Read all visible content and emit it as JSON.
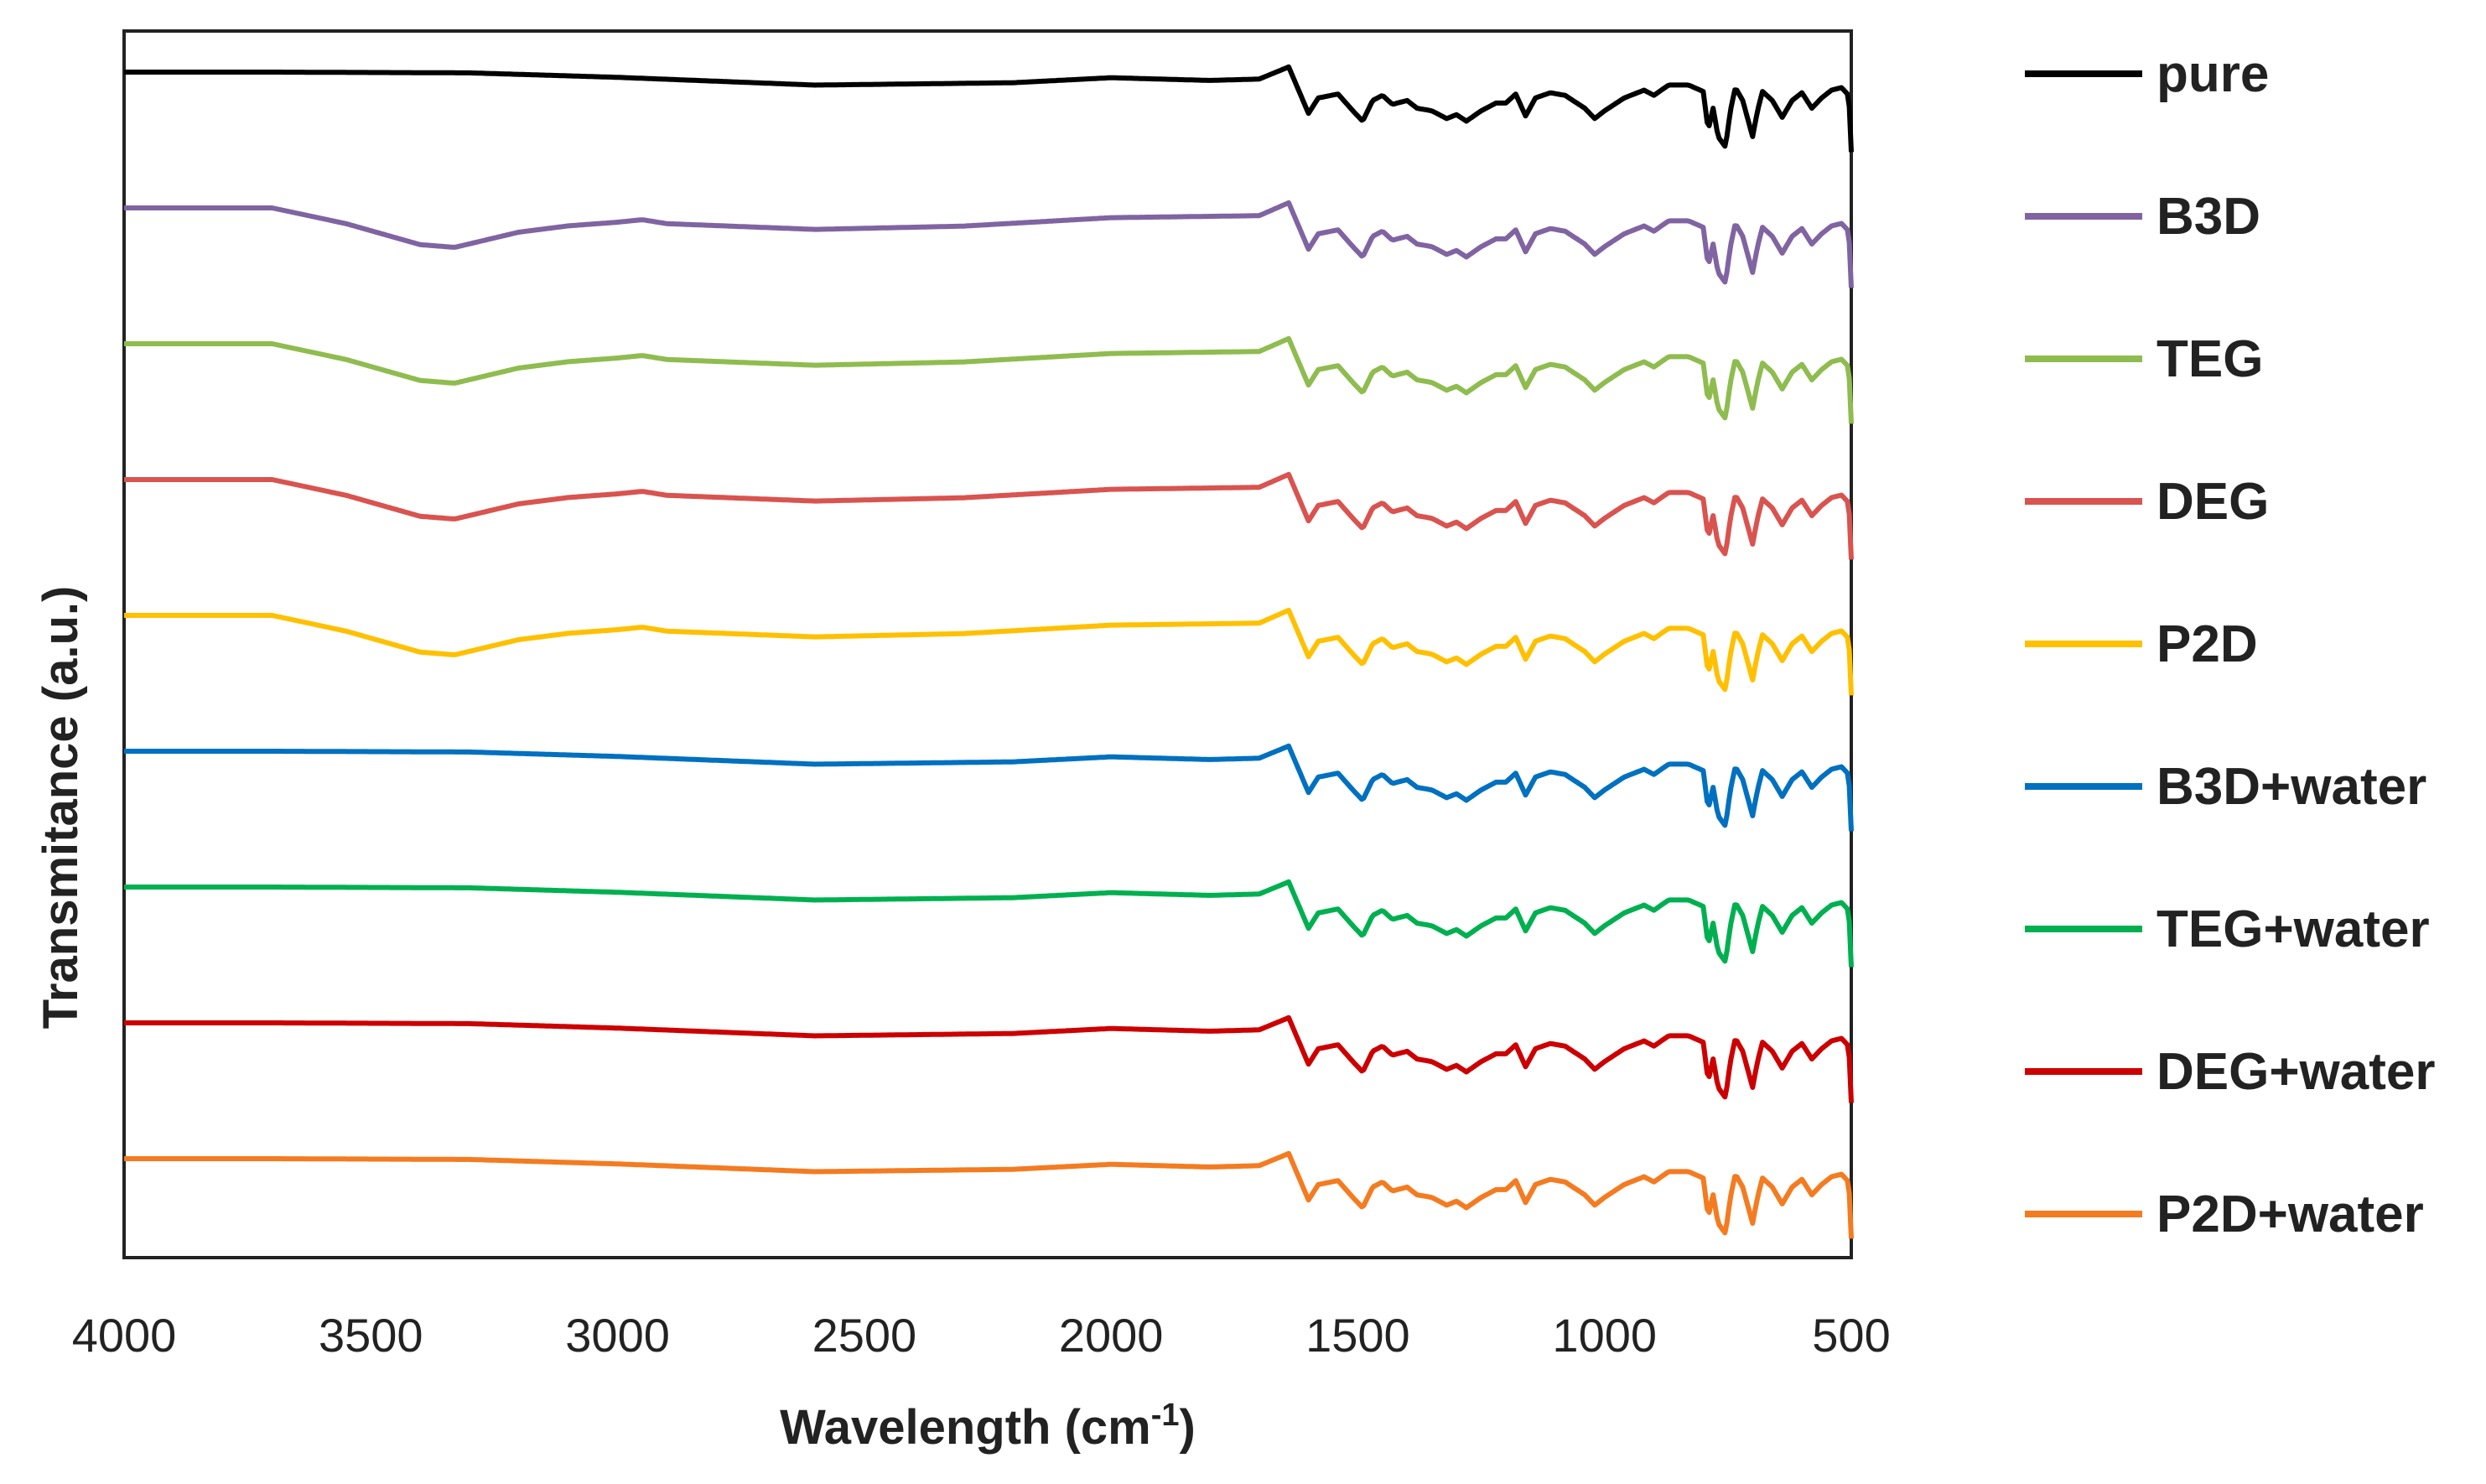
{
  "chart_data": {
    "type": "line",
    "title": "",
    "xlabel_main": "Wavelength (cm",
    "xlabel_sup": "-1",
    "xlabel_end": ")",
    "ylabel": "Transmitance (a.u.)",
    "xlim": [
      4000,
      500
    ],
    "x_reversed": true,
    "y_ticks_shown": false,
    "x_ticks": [
      4000,
      3500,
      3000,
      2500,
      2000,
      1500,
      1000,
      500
    ],
    "x_tick_labels": [
      "4000",
      "3500",
      "3000",
      "2500",
      "2000",
      "1500",
      "1000",
      "500"
    ],
    "y_unit": "a.u. (offset stack, 0 = bottom, 9 = top)",
    "legend_position": "right",
    "series": [
      {
        "name": "pure",
        "color": "#000000",
        "offset": 9.0,
        "has_oh_band": false
      },
      {
        "name": "B3D",
        "color": "#8064a2",
        "offset": 8.0,
        "has_oh_band": true
      },
      {
        "name": "TEG",
        "color": "#8fbc4f",
        "offset": 7.0,
        "has_oh_band": true
      },
      {
        "name": "DEG",
        "color": "#d9534f",
        "offset": 6.0,
        "has_oh_band": true
      },
      {
        "name": "P2D",
        "color": "#ffc000",
        "offset": 5.0,
        "has_oh_band": true
      },
      {
        "name": "B3D+water",
        "color": "#0070c0",
        "offset": 4.0,
        "has_oh_band": false
      },
      {
        "name": "TEG+water",
        "color": "#00b050",
        "offset": 3.0,
        "has_oh_band": false
      },
      {
        "name": "DEG+water",
        "color": "#cc0000",
        "offset": 2.0,
        "has_oh_band": false
      },
      {
        "name": "P2D+water",
        "color": "#f47b20",
        "offset": 1.0,
        "has_oh_band": false
      }
    ],
    "shape_profile": {
      "description": "relative transmittance profile vs wavenumber (cm-1), shared shape; 0 = baseline, negative = absorption (units of stack spacing)",
      "points": [
        [
          4000,
          0.0
        ],
        [
          3700,
          0.0
        ],
        [
          1700,
          -0.03
        ],
        [
          1640,
          0.04
        ],
        [
          1600,
          -0.32
        ],
        [
          1580,
          -0.2
        ],
        [
          1540,
          -0.17
        ],
        [
          1510,
          -0.3
        ],
        [
          1490,
          -0.38
        ],
        [
          1470,
          -0.22
        ],
        [
          1450,
          -0.18
        ],
        [
          1430,
          -0.25
        ],
        [
          1400,
          -0.22
        ],
        [
          1380,
          -0.28
        ],
        [
          1350,
          -0.3
        ],
        [
          1320,
          -0.36
        ],
        [
          1300,
          -0.33
        ],
        [
          1280,
          -0.38
        ],
        [
          1250,
          -0.3
        ],
        [
          1220,
          -0.24
        ],
        [
          1200,
          -0.24
        ],
        [
          1180,
          -0.17
        ],
        [
          1160,
          -0.34
        ],
        [
          1140,
          -0.2
        ],
        [
          1110,
          -0.16
        ],
        [
          1080,
          -0.18
        ],
        [
          1040,
          -0.28
        ],
        [
          1020,
          -0.36
        ],
        [
          1000,
          -0.3
        ],
        [
          960,
          -0.2
        ],
        [
          920,
          -0.14
        ],
        [
          900,
          -0.18
        ],
        [
          870,
          -0.1
        ],
        [
          830,
          -0.1
        ],
        [
          800,
          -0.15
        ],
        [
          790,
          -0.45
        ],
        [
          780,
          -0.28
        ],
        [
          770,
          -0.5
        ],
        [
          755,
          -0.58
        ],
        [
          745,
          -0.3
        ],
        [
          735,
          -0.12
        ],
        [
          720,
          -0.22
        ],
        [
          700,
          -0.5
        ],
        [
          690,
          -0.3
        ],
        [
          680,
          -0.15
        ],
        [
          660,
          -0.22
        ],
        [
          640,
          -0.35
        ],
        [
          620,
          -0.22
        ],
        [
          600,
          -0.16
        ],
        [
          580,
          -0.28
        ],
        [
          560,
          -0.2
        ],
        [
          540,
          -0.14
        ],
        [
          520,
          -0.12
        ],
        [
          505,
          -0.18
        ],
        [
          500,
          -0.62
        ]
      ]
    },
    "oh_band": {
      "description": "extra broad absorption for B3D, TEG, DEG, P2D (units of stack spacing)",
      "points": [
        [
          4000,
          0.0
        ],
        [
          3700,
          0.0
        ],
        [
          3550,
          -0.12
        ],
        [
          3400,
          -0.28
        ],
        [
          3330,
          -0.3
        ],
        [
          3200,
          -0.18
        ],
        [
          3100,
          -0.13
        ],
        [
          3000,
          -0.1
        ],
        [
          2950,
          -0.08
        ],
        [
          2900,
          -0.11
        ],
        [
          2600,
          -0.15
        ],
        [
          2300,
          -0.12
        ],
        [
          2000,
          -0.05
        ],
        [
          1700,
          -0.03
        ],
        [
          1640,
          0.0
        ]
      ]
    },
    "broad_water": {
      "description": "small broad dip around 2600 for all +water and pure (units of stack spacing)",
      "points": [
        [
          4000,
          0.0
        ],
        [
          3300,
          0.0
        ],
        [
          3000,
          -0.05
        ],
        [
          2600,
          -0.14
        ],
        [
          2200,
          -0.1
        ],
        [
          2000,
          -0.03
        ],
        [
          1800,
          -0.06
        ],
        [
          1700,
          -0.04
        ],
        [
          1640,
          0.0
        ]
      ]
    }
  }
}
